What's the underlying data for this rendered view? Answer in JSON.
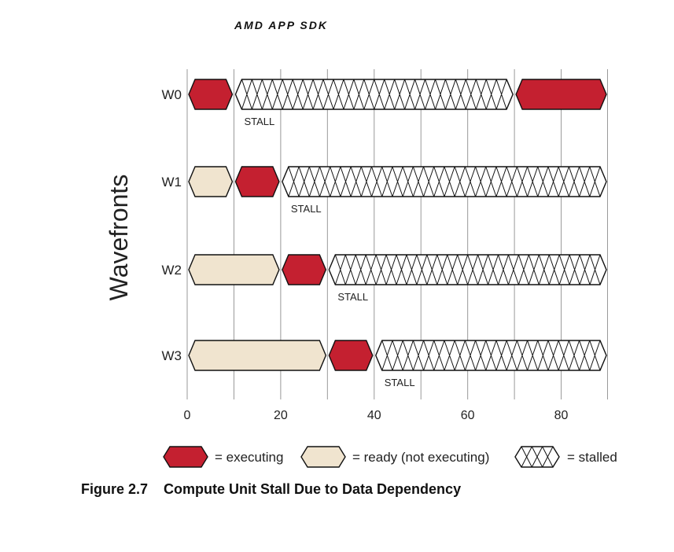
{
  "header": {
    "title": "AMD APP SDK"
  },
  "chart_data": {
    "type": "gantt",
    "ylabel": "Wavefronts",
    "x_ticks": [
      0,
      20,
      40,
      60,
      80
    ],
    "xlim": [
      0,
      90
    ],
    "grid": true,
    "rows": [
      {
        "label": "W0",
        "segments": [
          {
            "state": "executing",
            "start": 0,
            "end": 10
          },
          {
            "state": "stalled",
            "start": 10,
            "end": 70,
            "annotation": "STALL"
          },
          {
            "state": "executing",
            "start": 70,
            "end": 90
          }
        ]
      },
      {
        "label": "W1",
        "segments": [
          {
            "state": "ready",
            "start": 0,
            "end": 10
          },
          {
            "state": "executing",
            "start": 10,
            "end": 20
          },
          {
            "state": "stalled",
            "start": 20,
            "end": 90,
            "annotation": "STALL"
          }
        ]
      },
      {
        "label": "W2",
        "segments": [
          {
            "state": "ready",
            "start": 0,
            "end": 20
          },
          {
            "state": "executing",
            "start": 20,
            "end": 30
          },
          {
            "state": "stalled",
            "start": 30,
            "end": 90,
            "annotation": "STALL"
          }
        ]
      },
      {
        "label": "W3",
        "segments": [
          {
            "state": "ready",
            "start": 0,
            "end": 30
          },
          {
            "state": "executing",
            "start": 30,
            "end": 40
          },
          {
            "state": "stalled",
            "start": 40,
            "end": 90,
            "annotation": "STALL"
          }
        ]
      }
    ],
    "legend": [
      {
        "state": "executing",
        "label": "= executing"
      },
      {
        "state": "ready",
        "label": "= ready (not executing)"
      },
      {
        "state": "stalled",
        "label": "= stalled"
      }
    ],
    "colors": {
      "executing": "#c42030",
      "ready": "#f0e4cf",
      "stalled": "#ffffff",
      "grid": "#999999"
    }
  },
  "caption": {
    "number": "Figure 2.7",
    "text": "Compute Unit Stall Due to Data Dependency"
  }
}
